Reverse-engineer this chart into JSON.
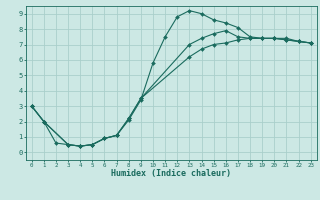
{
  "xlabel": "Humidex (Indice chaleur)",
  "bg_color": "#cce8e4",
  "grid_color": "#aacfcb",
  "line_color": "#1a6b5e",
  "xlim": [
    -0.5,
    23.5
  ],
  "ylim": [
    -0.5,
    9.5
  ],
  "xticks": [
    0,
    1,
    2,
    3,
    4,
    5,
    6,
    7,
    8,
    9,
    10,
    11,
    12,
    13,
    14,
    15,
    16,
    17,
    18,
    19,
    20,
    21,
    22,
    23
  ],
  "yticks": [
    0,
    1,
    2,
    3,
    4,
    5,
    6,
    7,
    8,
    9
  ],
  "line1_x": [
    0,
    1,
    2,
    3,
    4,
    5,
    6,
    7,
    8,
    9,
    10,
    11,
    12,
    13,
    14,
    15,
    16,
    17,
    18,
    19,
    20,
    21,
    22,
    23
  ],
  "line1_y": [
    3.0,
    2.0,
    0.6,
    0.5,
    0.4,
    0.5,
    0.9,
    1.1,
    2.1,
    3.4,
    5.8,
    7.5,
    8.8,
    9.2,
    9.0,
    8.6,
    8.4,
    8.1,
    7.5,
    7.4,
    7.4,
    7.4,
    7.2,
    7.1
  ],
  "line2_x": [
    0,
    1,
    3,
    4,
    5,
    6,
    7,
    8,
    9,
    13,
    14,
    15,
    16,
    17,
    18,
    19,
    20,
    21,
    22,
    23
  ],
  "line2_y": [
    3.0,
    2.0,
    0.5,
    0.4,
    0.5,
    0.9,
    1.1,
    2.2,
    3.5,
    7.0,
    7.4,
    7.7,
    7.9,
    7.5,
    7.4,
    7.4,
    7.4,
    7.3,
    7.2,
    7.1
  ],
  "line3_x": [
    0,
    1,
    3,
    4,
    5,
    6,
    7,
    8,
    9,
    13,
    14,
    15,
    16,
    17,
    18,
    19,
    20,
    21,
    22,
    23
  ],
  "line3_y": [
    3.0,
    2.0,
    0.5,
    0.4,
    0.5,
    0.9,
    1.1,
    2.2,
    3.5,
    6.2,
    6.7,
    7.0,
    7.1,
    7.3,
    7.4,
    7.4,
    7.4,
    7.3,
    7.2,
    7.1
  ]
}
